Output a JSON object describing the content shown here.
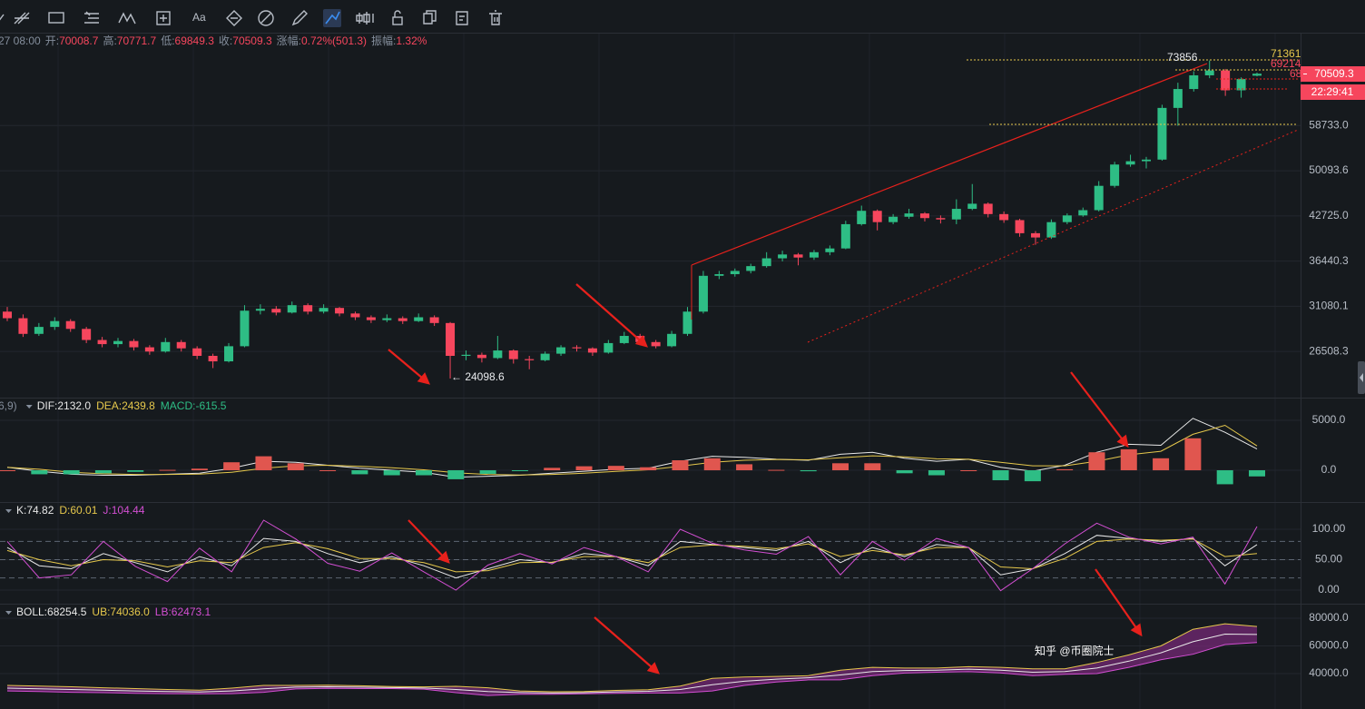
{
  "toolbar": {
    "text_tool": "Aa"
  },
  "info_bar": {
    "time": "27 08:00",
    "fields": [
      {
        "label": "开:",
        "value": "70008.7"
      },
      {
        "label": "高:",
        "value": "70771.7"
      },
      {
        "label": "低:",
        "value": "69849.3"
      },
      {
        "label": "收:",
        "value": "70509.3"
      },
      {
        "label": "涨幅:",
        "value": "0.72%(501.3)"
      },
      {
        "label": "振幅:",
        "value": "1.32%"
      }
    ]
  },
  "annotations": {
    "high": "73856",
    "level_1": "71361",
    "level_2": "69214",
    "level_3": "68",
    "low": "← 24098.6"
  },
  "price_tag": {
    "price": "70509.3",
    "countdown": "22:29:41"
  },
  "watermark": "知乎 @币圈院士",
  "chart_data": [
    {
      "type": "candlestick",
      "up_color": "#2ebd85",
      "down_color": "#f6465d",
      "log_scale": true,
      "grid": true,
      "ylim": [
        22530,
        81200
      ],
      "yticks": [
        {
          "value": 58733.0,
          "label": "58733.0"
        },
        50093.6,
        {
          "value": 42725.0,
          "label": "42725.0"
        },
        36440.3,
        31080.1,
        26508.3
      ],
      "candles": [
        [
          30500,
          31000,
          29500,
          29800
        ],
        [
          29800,
          30200,
          27900,
          28200
        ],
        [
          28200,
          29300,
          28000,
          28900
        ],
        [
          28900,
          29900,
          28600,
          29500
        ],
        [
          29500,
          29700,
          28400,
          28700
        ],
        [
          28700,
          28900,
          27300,
          27600
        ],
        [
          27600,
          27900,
          26900,
          27200
        ],
        [
          27200,
          27800,
          26900,
          27500
        ],
        [
          27500,
          27700,
          26600,
          26900
        ],
        [
          26900,
          27100,
          26200,
          26500
        ],
        [
          26500,
          27800,
          26400,
          27400
        ],
        [
          27400,
          27600,
          26500,
          26800
        ],
        [
          26800,
          27000,
          25800,
          26100
        ],
        [
          26100,
          26300,
          25000,
          25600
        ],
        [
          25600,
          27300,
          25500,
          27000
        ],
        [
          27000,
          31200,
          26900,
          30600
        ],
        [
          30600,
          31300,
          30200,
          30800
        ],
        [
          30800,
          31100,
          30100,
          30400
        ],
        [
          30400,
          31600,
          30300,
          31200
        ],
        [
          31200,
          31400,
          30200,
          30500
        ],
        [
          30500,
          31300,
          30300,
          30900
        ],
        [
          30900,
          31000,
          30000,
          30300
        ],
        [
          30300,
          30500,
          29600,
          29900
        ],
        [
          29900,
          30100,
          29300,
          29600
        ],
        [
          29600,
          30200,
          29400,
          29800
        ],
        [
          29800,
          30000,
          29200,
          29500
        ],
        [
          29500,
          30300,
          29400,
          29900
        ],
        [
          29900,
          30100,
          29000,
          29300
        ],
        [
          29300,
          29400,
          24098.6,
          26100
        ],
        [
          26100,
          26600,
          25700,
          26200
        ],
        [
          26200,
          26400,
          25500,
          25900
        ],
        [
          25900,
          28000,
          25800,
          26600
        ],
        [
          26600,
          26700,
          25400,
          25800
        ],
        [
          25800,
          26100,
          24900,
          25700
        ],
        [
          25700,
          26500,
          25600,
          26300
        ],
        [
          26300,
          27100,
          26100,
          26900
        ],
        [
          26900,
          27100,
          26500,
          26800
        ],
        [
          26800,
          26900,
          26100,
          26400
        ],
        [
          26400,
          27600,
          26300,
          27300
        ],
        [
          27300,
          28400,
          27200,
          28000
        ],
        [
          28000,
          28200,
          27100,
          27400
        ],
        [
          27400,
          27600,
          26800,
          27000
        ],
        [
          27000,
          28500,
          26900,
          28200
        ],
        [
          28200,
          31000,
          28000,
          30500
        ],
        [
          30500,
          35200,
          30300,
          34600
        ],
        [
          34600,
          35200,
          34200,
          34800
        ],
        [
          34800,
          35500,
          34500,
          35200
        ],
        [
          35200,
          36100,
          34900,
          35800
        ],
        [
          35800,
          37600,
          35600,
          36800
        ],
        [
          36800,
          37800,
          36400,
          37300
        ],
        [
          37300,
          37500,
          35900,
          36900
        ],
        [
          36900,
          37900,
          36600,
          37600
        ],
        [
          37600,
          38500,
          37200,
          38100
        ],
        [
          38100,
          42000,
          38000,
          41500
        ],
        [
          41500,
          44300,
          41300,
          43500
        ],
        [
          43500,
          43700,
          40600,
          41800
        ],
        [
          41800,
          43000,
          41500,
          42600
        ],
        [
          42600,
          43800,
          42300,
          43100
        ],
        [
          43100,
          43300,
          41900,
          42400
        ],
        [
          42400,
          42800,
          41600,
          42200
        ],
        [
          42200,
          45300,
          41500,
          43800
        ],
        [
          43800,
          47800,
          43600,
          44600
        ],
        [
          44600,
          44800,
          42500,
          43000
        ],
        [
          43000,
          43400,
          41700,
          42100
        ],
        [
          42100,
          42300,
          39700,
          40200
        ],
        [
          40200,
          40500,
          38600,
          39600
        ],
        [
          39600,
          42200,
          39400,
          41800
        ],
        [
          41800,
          43100,
          41500,
          42800
        ],
        [
          42800,
          44000,
          42600,
          43600
        ],
        [
          43600,
          48300,
          43400,
          47500
        ],
        [
          47500,
          51700,
          47200,
          51200
        ],
        [
          51200,
          53000,
          50800,
          51800
        ],
        [
          51800,
          52600,
          50500,
          52100
        ],
        [
          52100,
          63200,
          51900,
          62500
        ],
        [
          62500,
          68300,
          58700,
          66800
        ],
        [
          66800,
          71100,
          66200,
          70100
        ],
        [
          70100,
          73856,
          69400,
          71300
        ],
        [
          71300,
          71700,
          65200,
          66500
        ],
        [
          66500,
          69600,
          64800,
          69200
        ],
        [
          70008.7,
          70771.7,
          69849.3,
          70509.3
        ]
      ]
    },
    {
      "type": "line",
      "indicator": "6,9)",
      "up_color": "#e0564f",
      "down_color": "#2ebd85",
      "grid": true,
      "ylim": [
        -3180,
        7090
      ],
      "yticks": [
        {
          "value": 5000,
          "label": "5000.0"
        },
        {
          "value": 0,
          "label": "0.0"
        }
      ],
      "series": [
        {
          "name": "DIF:2132.0",
          "color": "#e8e8e8",
          "type": "line",
          "values": [
            300,
            -100,
            -400,
            -500,
            -500,
            -400,
            -300,
            200,
            900,
            800,
            500,
            200,
            0,
            -200,
            -700,
            -600,
            -500,
            -300,
            -100,
            100,
            200,
            900,
            1400,
            1300,
            1100,
            1000,
            1600,
            1800,
            1200,
            900,
            1100,
            300,
            -100,
            500,
            1800,
            2600,
            2500,
            5200,
            3800,
            2132.0
          ]
        },
        {
          "name": "DEA:2439.8",
          "color": "#e6c84c",
          "type": "line",
          "values": [
            300,
            100,
            -200,
            -350,
            -420,
            -420,
            -380,
            -200,
            200,
            450,
            500,
            400,
            250,
            50,
            -250,
            -420,
            -480,
            -420,
            -300,
            -120,
            50,
            400,
            800,
            1000,
            1080,
            1050,
            1250,
            1450,
            1350,
            1150,
            1100,
            800,
            450,
            450,
            900,
            1550,
            1900,
            3600,
            4500,
            2439.8
          ]
        },
        {
          "name": "MACD:-615.5",
          "color": "#2ebd85",
          "type": "bar",
          "values": [
            0,
            -400,
            -400,
            -300,
            -160,
            40,
            160,
            800,
            1400,
            700,
            0,
            -400,
            -500,
            -500,
            -900,
            -360,
            -40,
            240,
            400,
            440,
            300,
            1000,
            1200,
            600,
            40,
            -100,
            700,
            700,
            -300,
            -500,
            0,
            -1000,
            -1100,
            100,
            1800,
            2100,
            1200,
            3200,
            -1400,
            -615.5
          ]
        }
      ]
    },
    {
      "type": "line",
      "grid": true,
      "dashed_levels": [
        20,
        50,
        80
      ],
      "ylim": [
        -22.4,
        141.8
      ],
      "yticks": [
        {
          "value": 100,
          "label": "100.00"
        },
        {
          "value": 50,
          "label": "50.00"
        },
        {
          "value": 0,
          "label": "0.00"
        }
      ],
      "series": [
        {
          "name": "K:74.82",
          "color": "#e8e8e8",
          "type": "line",
          "values": [
            70,
            40,
            35,
            60,
            45,
            30,
            55,
            40,
            85,
            80,
            60,
            45,
            55,
            40,
            20,
            35,
            50,
            45,
            60,
            55,
            40,
            80,
            75,
            70,
            65,
            80,
            45,
            70,
            55,
            75,
            70,
            25,
            35,
            60,
            90,
            85,
            80,
            85,
            40,
            74.82
          ]
        },
        {
          "name": "D:60.01",
          "color": "#e6c84c",
          "type": "line",
          "values": [
            65,
            50,
            40,
            50,
            48,
            38,
            48,
            45,
            70,
            78,
            68,
            52,
            52,
            45,
            30,
            32,
            45,
            46,
            55,
            55,
            45,
            70,
            74,
            72,
            68,
            76,
            55,
            65,
            58,
            70,
            70,
            38,
            35,
            52,
            80,
            84,
            82,
            84,
            55,
            60.01
          ]
        },
        {
          "name": "J:104.44",
          "color": "#d34fd3",
          "type": "line",
          "values": [
            80,
            20,
            25,
            80,
            39,
            14,
            69,
            30,
            115,
            84,
            44,
            31,
            61,
            30,
            0,
            41,
            60,
            43,
            70,
            55,
            30,
            100,
            77,
            66,
            59,
            88,
            25,
            80,
            49,
            85,
            70,
            -1,
            35,
            76,
            110,
            87,
            76,
            87,
            10,
            104.44
          ]
        }
      ]
    },
    {
      "type": "line",
      "grid": true,
      "band_fill": "#7b2a7b",
      "ylim": [
        14430,
        89180
      ],
      "yticks": [
        {
          "value": 80000,
          "label": "80000.0"
        },
        {
          "value": 60000,
          "label": "60000.0"
        },
        {
          "value": 40000,
          "label": "40000.0"
        }
      ],
      "series": [
        {
          "name": "BOLL:68254.5",
          "color": "#e8e8e8",
          "type": "line",
          "values": [
            29500,
            29000,
            28500,
            28000,
            27500,
            27000,
            26700,
            27500,
            29000,
            30200,
            30500,
            30200,
            29900,
            29600,
            28500,
            27000,
            26300,
            26000,
            26200,
            26800,
            27200,
            28500,
            32000,
            34500,
            36000,
            37000,
            39000,
            41500,
            42200,
            42500,
            43200,
            42500,
            41000,
            41500,
            44000,
            49000,
            55000,
            63000,
            68500,
            68254.5
          ]
        },
        {
          "name": "UB:74036.0",
          "color": "#e6c84c",
          "type": "line",
          "values": [
            31500,
            31000,
            30500,
            29800,
            29200,
            28500,
            28000,
            29500,
            31500,
            31500,
            31600,
            31200,
            30600,
            30400,
            30800,
            29800,
            27500,
            26900,
            27000,
            27900,
            28400,
            31000,
            36500,
            37500,
            38000,
            38500,
            42500,
            44500,
            44000,
            44000,
            45000,
            44500,
            43500,
            43500,
            48000,
            53500,
            60000,
            72000,
            76000,
            74036.0
          ]
        },
        {
          "name": "LB:62473.1",
          "color": "#d34fd3",
          "type": "line",
          "values": [
            27500,
            27000,
            26500,
            26200,
            25800,
            25500,
            25400,
            25500,
            26500,
            28900,
            29400,
            29200,
            29200,
            28800,
            26200,
            24200,
            25100,
            25100,
            25400,
            25700,
            26000,
            26000,
            27500,
            31500,
            34000,
            35500,
            35500,
            38500,
            40400,
            41000,
            41400,
            40500,
            38500,
            39500,
            40000,
            44500,
            50000,
            54000,
            61000,
            62473.1
          ]
        }
      ]
    }
  ]
}
